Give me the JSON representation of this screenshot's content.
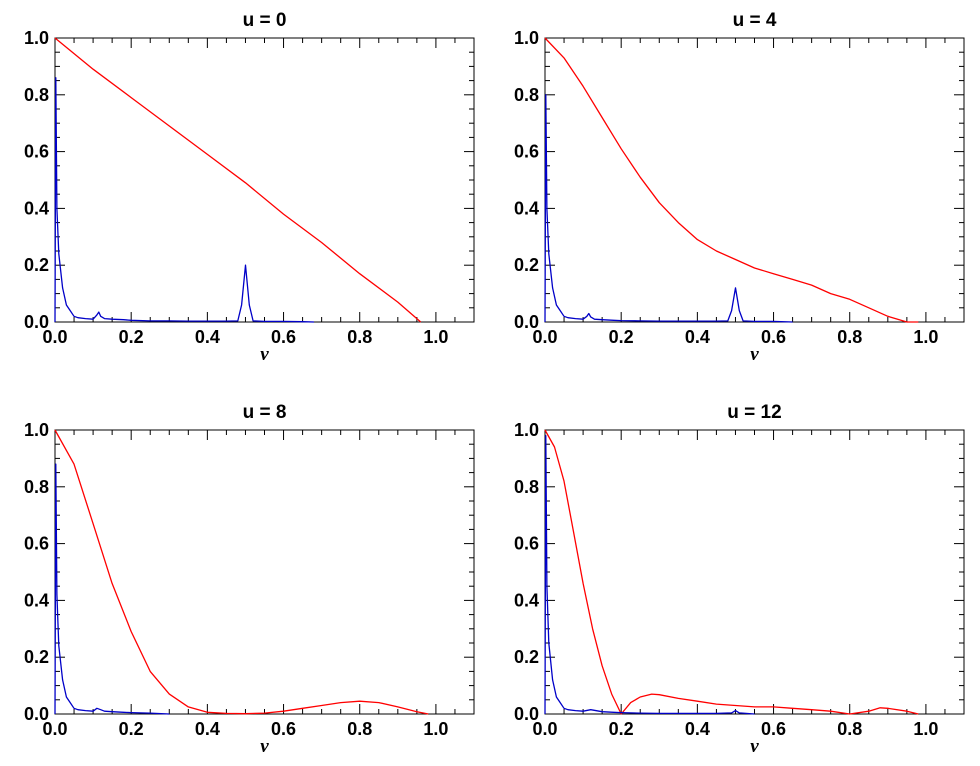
{
  "chart_data": [
    {
      "type": "line",
      "title": "u = 0",
      "xlabel": "ν",
      "ylabel": "",
      "xlim": [
        0.0,
        1.1
      ],
      "ylim": [
        0.0,
        1.0
      ],
      "xticks": [
        "0.0",
        "0.2",
        "0.4",
        "0.6",
        "0.8",
        "1.0"
      ],
      "yticks": [
        "0.0",
        "0.2",
        "0.4",
        "0.6",
        "0.8",
        "1.0"
      ],
      "grid": false,
      "series": [
        {
          "color": "#ff0000",
          "x": [
            0.0,
            0.1,
            0.2,
            0.3,
            0.4,
            0.5,
            0.6,
            0.7,
            0.8,
            0.9,
            0.96
          ],
          "y": [
            1.0,
            0.89,
            0.79,
            0.69,
            0.59,
            0.49,
            0.38,
            0.28,
            0.17,
            0.07,
            0.0
          ]
        },
        {
          "color": "#0000c8",
          "x": [
            0.0,
            0.002,
            0.005,
            0.01,
            0.02,
            0.03,
            0.04,
            0.05,
            0.06,
            0.08,
            0.1,
            0.11,
            0.115,
            0.12,
            0.13,
            0.15,
            0.18,
            0.2,
            0.25,
            0.3,
            0.35,
            0.4,
            0.45,
            0.48,
            0.49,
            0.5,
            0.51,
            0.52,
            0.55,
            0.6,
            0.65,
            0.68
          ],
          "y": [
            0.0,
            0.86,
            0.4,
            0.24,
            0.12,
            0.06,
            0.04,
            0.02,
            0.015,
            0.012,
            0.01,
            0.025,
            0.035,
            0.02,
            0.012,
            0.01,
            0.008,
            0.006,
            0.004,
            0.004,
            0.003,
            0.003,
            0.003,
            0.004,
            0.06,
            0.2,
            0.06,
            0.004,
            0.002,
            0.002,
            0.001,
            0.0
          ]
        }
      ]
    },
    {
      "type": "line",
      "title": "u = 4",
      "xlabel": "ν",
      "ylabel": "",
      "xlim": [
        0.0,
        1.1
      ],
      "ylim": [
        0.0,
        1.0
      ],
      "xticks": [
        "0.0",
        "0.2",
        "0.4",
        "0.6",
        "0.8",
        "1.0"
      ],
      "yticks": [
        "0.0",
        "0.2",
        "0.4",
        "0.6",
        "0.8",
        "1.0"
      ],
      "grid": false,
      "series": [
        {
          "color": "#ff0000",
          "x": [
            0.0,
            0.05,
            0.1,
            0.15,
            0.2,
            0.25,
            0.3,
            0.35,
            0.4,
            0.45,
            0.5,
            0.55,
            0.6,
            0.65,
            0.7,
            0.75,
            0.8,
            0.85,
            0.9,
            0.95,
            0.98
          ],
          "y": [
            1.0,
            0.93,
            0.83,
            0.72,
            0.61,
            0.51,
            0.42,
            0.35,
            0.29,
            0.25,
            0.22,
            0.19,
            0.17,
            0.15,
            0.13,
            0.1,
            0.08,
            0.05,
            0.02,
            0.0,
            0.0
          ]
        },
        {
          "color": "#0000c8",
          "x": [
            0.0,
            0.002,
            0.005,
            0.01,
            0.02,
            0.03,
            0.04,
            0.05,
            0.06,
            0.08,
            0.1,
            0.11,
            0.115,
            0.12,
            0.13,
            0.15,
            0.18,
            0.2,
            0.25,
            0.3,
            0.35,
            0.4,
            0.45,
            0.48,
            0.49,
            0.5,
            0.51,
            0.52,
            0.55,
            0.6,
            0.65
          ],
          "y": [
            0.0,
            0.8,
            0.4,
            0.24,
            0.12,
            0.06,
            0.04,
            0.02,
            0.015,
            0.012,
            0.01,
            0.02,
            0.03,
            0.018,
            0.01,
            0.008,
            0.006,
            0.005,
            0.004,
            0.003,
            0.003,
            0.003,
            0.003,
            0.004,
            0.04,
            0.12,
            0.04,
            0.004,
            0.002,
            0.002,
            0.0
          ]
        }
      ]
    },
    {
      "type": "line",
      "title": "u = 8",
      "xlabel": "ν",
      "ylabel": "",
      "xlim": [
        0.0,
        1.1
      ],
      "ylim": [
        0.0,
        1.0
      ],
      "xticks": [
        "0.0",
        "0.2",
        "0.4",
        "0.6",
        "0.8",
        "1.0"
      ],
      "yticks": [
        "0.0",
        "0.2",
        "0.4",
        "0.6",
        "0.8",
        "1.0"
      ],
      "grid": false,
      "series": [
        {
          "color": "#ff0000",
          "x": [
            0.0,
            0.05,
            0.1,
            0.15,
            0.2,
            0.25,
            0.3,
            0.35,
            0.4,
            0.45,
            0.5,
            0.55,
            0.6,
            0.65,
            0.7,
            0.75,
            0.8,
            0.85,
            0.9,
            0.95,
            0.98
          ],
          "y": [
            1.0,
            0.88,
            0.67,
            0.46,
            0.29,
            0.15,
            0.07,
            0.025,
            0.006,
            0.002,
            0.001,
            0.003,
            0.01,
            0.02,
            0.03,
            0.04,
            0.045,
            0.04,
            0.025,
            0.008,
            0.0
          ]
        },
        {
          "color": "#0000c8",
          "x": [
            0.0,
            0.002,
            0.005,
            0.01,
            0.02,
            0.03,
            0.04,
            0.05,
            0.06,
            0.08,
            0.1,
            0.11,
            0.12,
            0.13,
            0.15,
            0.18,
            0.2,
            0.25,
            0.3
          ],
          "y": [
            0.0,
            0.88,
            0.42,
            0.24,
            0.12,
            0.06,
            0.04,
            0.02,
            0.015,
            0.012,
            0.01,
            0.02,
            0.015,
            0.01,
            0.008,
            0.006,
            0.005,
            0.003,
            0.0
          ]
        }
      ]
    },
    {
      "type": "line",
      "title": "u = 12",
      "xlabel": "ν",
      "ylabel": "",
      "xlim": [
        0.0,
        1.1
      ],
      "ylim": [
        0.0,
        1.0
      ],
      "xticks": [
        "0.0",
        "0.2",
        "0.4",
        "0.6",
        "0.8",
        "1.0"
      ],
      "yticks": [
        "0.0",
        "0.2",
        "0.4",
        "0.6",
        "0.8",
        "1.0"
      ],
      "grid": false,
      "series": [
        {
          "color": "#ff0000",
          "x": [
            0.0,
            0.025,
            0.05,
            0.075,
            0.1,
            0.125,
            0.15,
            0.175,
            0.2,
            0.225,
            0.25,
            0.28,
            0.3,
            0.35,
            0.4,
            0.45,
            0.5,
            0.55,
            0.6,
            0.65,
            0.7,
            0.75,
            0.8,
            0.85,
            0.88,
            0.9,
            0.95,
            0.98
          ],
          "y": [
            1.0,
            0.94,
            0.82,
            0.64,
            0.46,
            0.3,
            0.17,
            0.07,
            0.0,
            0.04,
            0.06,
            0.07,
            0.068,
            0.055,
            0.045,
            0.035,
            0.03,
            0.025,
            0.025,
            0.02,
            0.015,
            0.01,
            0.0,
            0.01,
            0.022,
            0.02,
            0.01,
            0.0
          ]
        },
        {
          "color": "#0000c8",
          "x": [
            0.0,
            0.002,
            0.005,
            0.01,
            0.02,
            0.03,
            0.04,
            0.05,
            0.06,
            0.08,
            0.1,
            0.12,
            0.15,
            0.18,
            0.2,
            0.25,
            0.3,
            0.35,
            0.4,
            0.45,
            0.49,
            0.5,
            0.51,
            0.55
          ],
          "y": [
            0.0,
            0.98,
            0.45,
            0.25,
            0.12,
            0.06,
            0.04,
            0.02,
            0.015,
            0.012,
            0.01,
            0.015,
            0.008,
            0.006,
            0.005,
            0.003,
            0.002,
            0.002,
            0.002,
            0.002,
            0.004,
            0.012,
            0.004,
            0.0
          ]
        }
      ]
    }
  ]
}
